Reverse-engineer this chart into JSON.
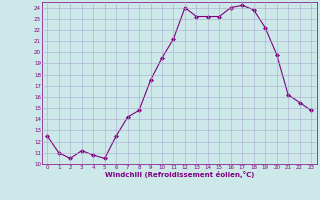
{
  "x": [
    0,
    1,
    2,
    3,
    4,
    5,
    6,
    7,
    8,
    9,
    10,
    11,
    12,
    13,
    14,
    15,
    16,
    17,
    18,
    19,
    20,
    21,
    22,
    23
  ],
  "y": [
    12.5,
    11.0,
    10.5,
    11.2,
    10.8,
    10.5,
    12.5,
    14.2,
    14.8,
    17.5,
    19.5,
    21.2,
    24.0,
    23.2,
    23.2,
    23.2,
    24.0,
    24.2,
    23.8,
    22.2,
    19.8,
    16.2,
    15.5,
    14.8
  ],
  "line_color": "#800080",
  "marker": "D",
  "marker_size": 2,
  "bg_color": "#cce8e8",
  "grid_color": "#aaaacc",
  "xlabel": "Windchill (Refroidissement éolien,°C)",
  "xlabel_color": "#800080",
  "tick_color": "#800080",
  "ylim": [
    10,
    24.5
  ],
  "xlim": [
    -0.5,
    23.5
  ],
  "yticks": [
    10,
    11,
    12,
    13,
    14,
    15,
    16,
    17,
    18,
    19,
    20,
    21,
    22,
    23,
    24
  ],
  "xticks": [
    0,
    1,
    2,
    3,
    4,
    5,
    6,
    7,
    8,
    9,
    10,
    11,
    12,
    13,
    14,
    15,
    16,
    17,
    18,
    19,
    20,
    21,
    22,
    23
  ]
}
